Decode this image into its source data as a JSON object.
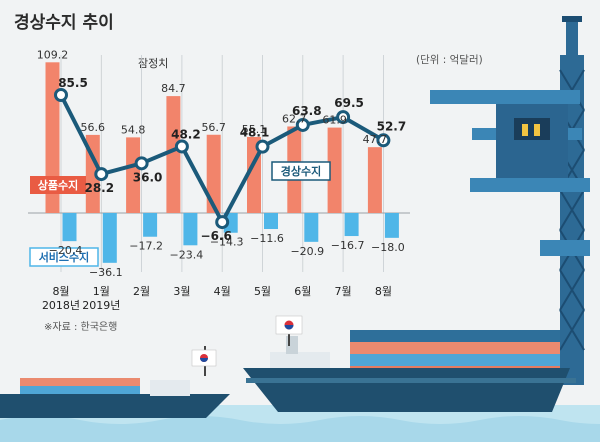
{
  "title": "경상수지 추이",
  "unit": "(단위 : 억달러)",
  "source": "※자료 : 한국은행",
  "chart_data": {
    "type": "bar",
    "categories": [
      "8월\n2018년",
      "1월\n2019년",
      "2월",
      "3월",
      "4월",
      "5월",
      "6월",
      "7월",
      "8월"
    ],
    "series": [
      {
        "name": "상품수지",
        "type": "bar",
        "color": "#f2846b",
        "values": [
          109.2,
          56.6,
          54.8,
          84.7,
          56.7,
          55.1,
          62.7,
          61.9,
          47.7
        ]
      },
      {
        "name": "서비스수지",
        "type": "bar",
        "color": "#4fb6e8",
        "values": [
          -20.4,
          -36.1,
          -17.2,
          -23.4,
          -14.3,
          -11.6,
          -20.9,
          -16.7,
          -18.0
        ]
      },
      {
        "name": "경상수지",
        "type": "line",
        "color": "#1b5a7a",
        "values": [
          85.5,
          28.2,
          36.0,
          48.2,
          -6.6,
          48.1,
          63.8,
          69.5,
          52.7
        ]
      }
    ],
    "annotations": [
      "잠정치"
    ],
    "value_labels": {
      "goods": [
        "109.2",
        "56.6",
        "54.8",
        "84.7",
        "56.7",
        "55.1",
        "62.7",
        "61.9",
        "47.7"
      ],
      "service": [
        "−20.4",
        "−36.1",
        "−17.2",
        "−23.4",
        "−14.3",
        "−11.6",
        "−20.9",
        "−16.7",
        "−18.0"
      ],
      "current": [
        "85.5",
        "28.2",
        "36.0",
        "48.2",
        "−6.6",
        "48.1",
        "63.8",
        "69.5",
        "52.7"
      ]
    }
  }
}
